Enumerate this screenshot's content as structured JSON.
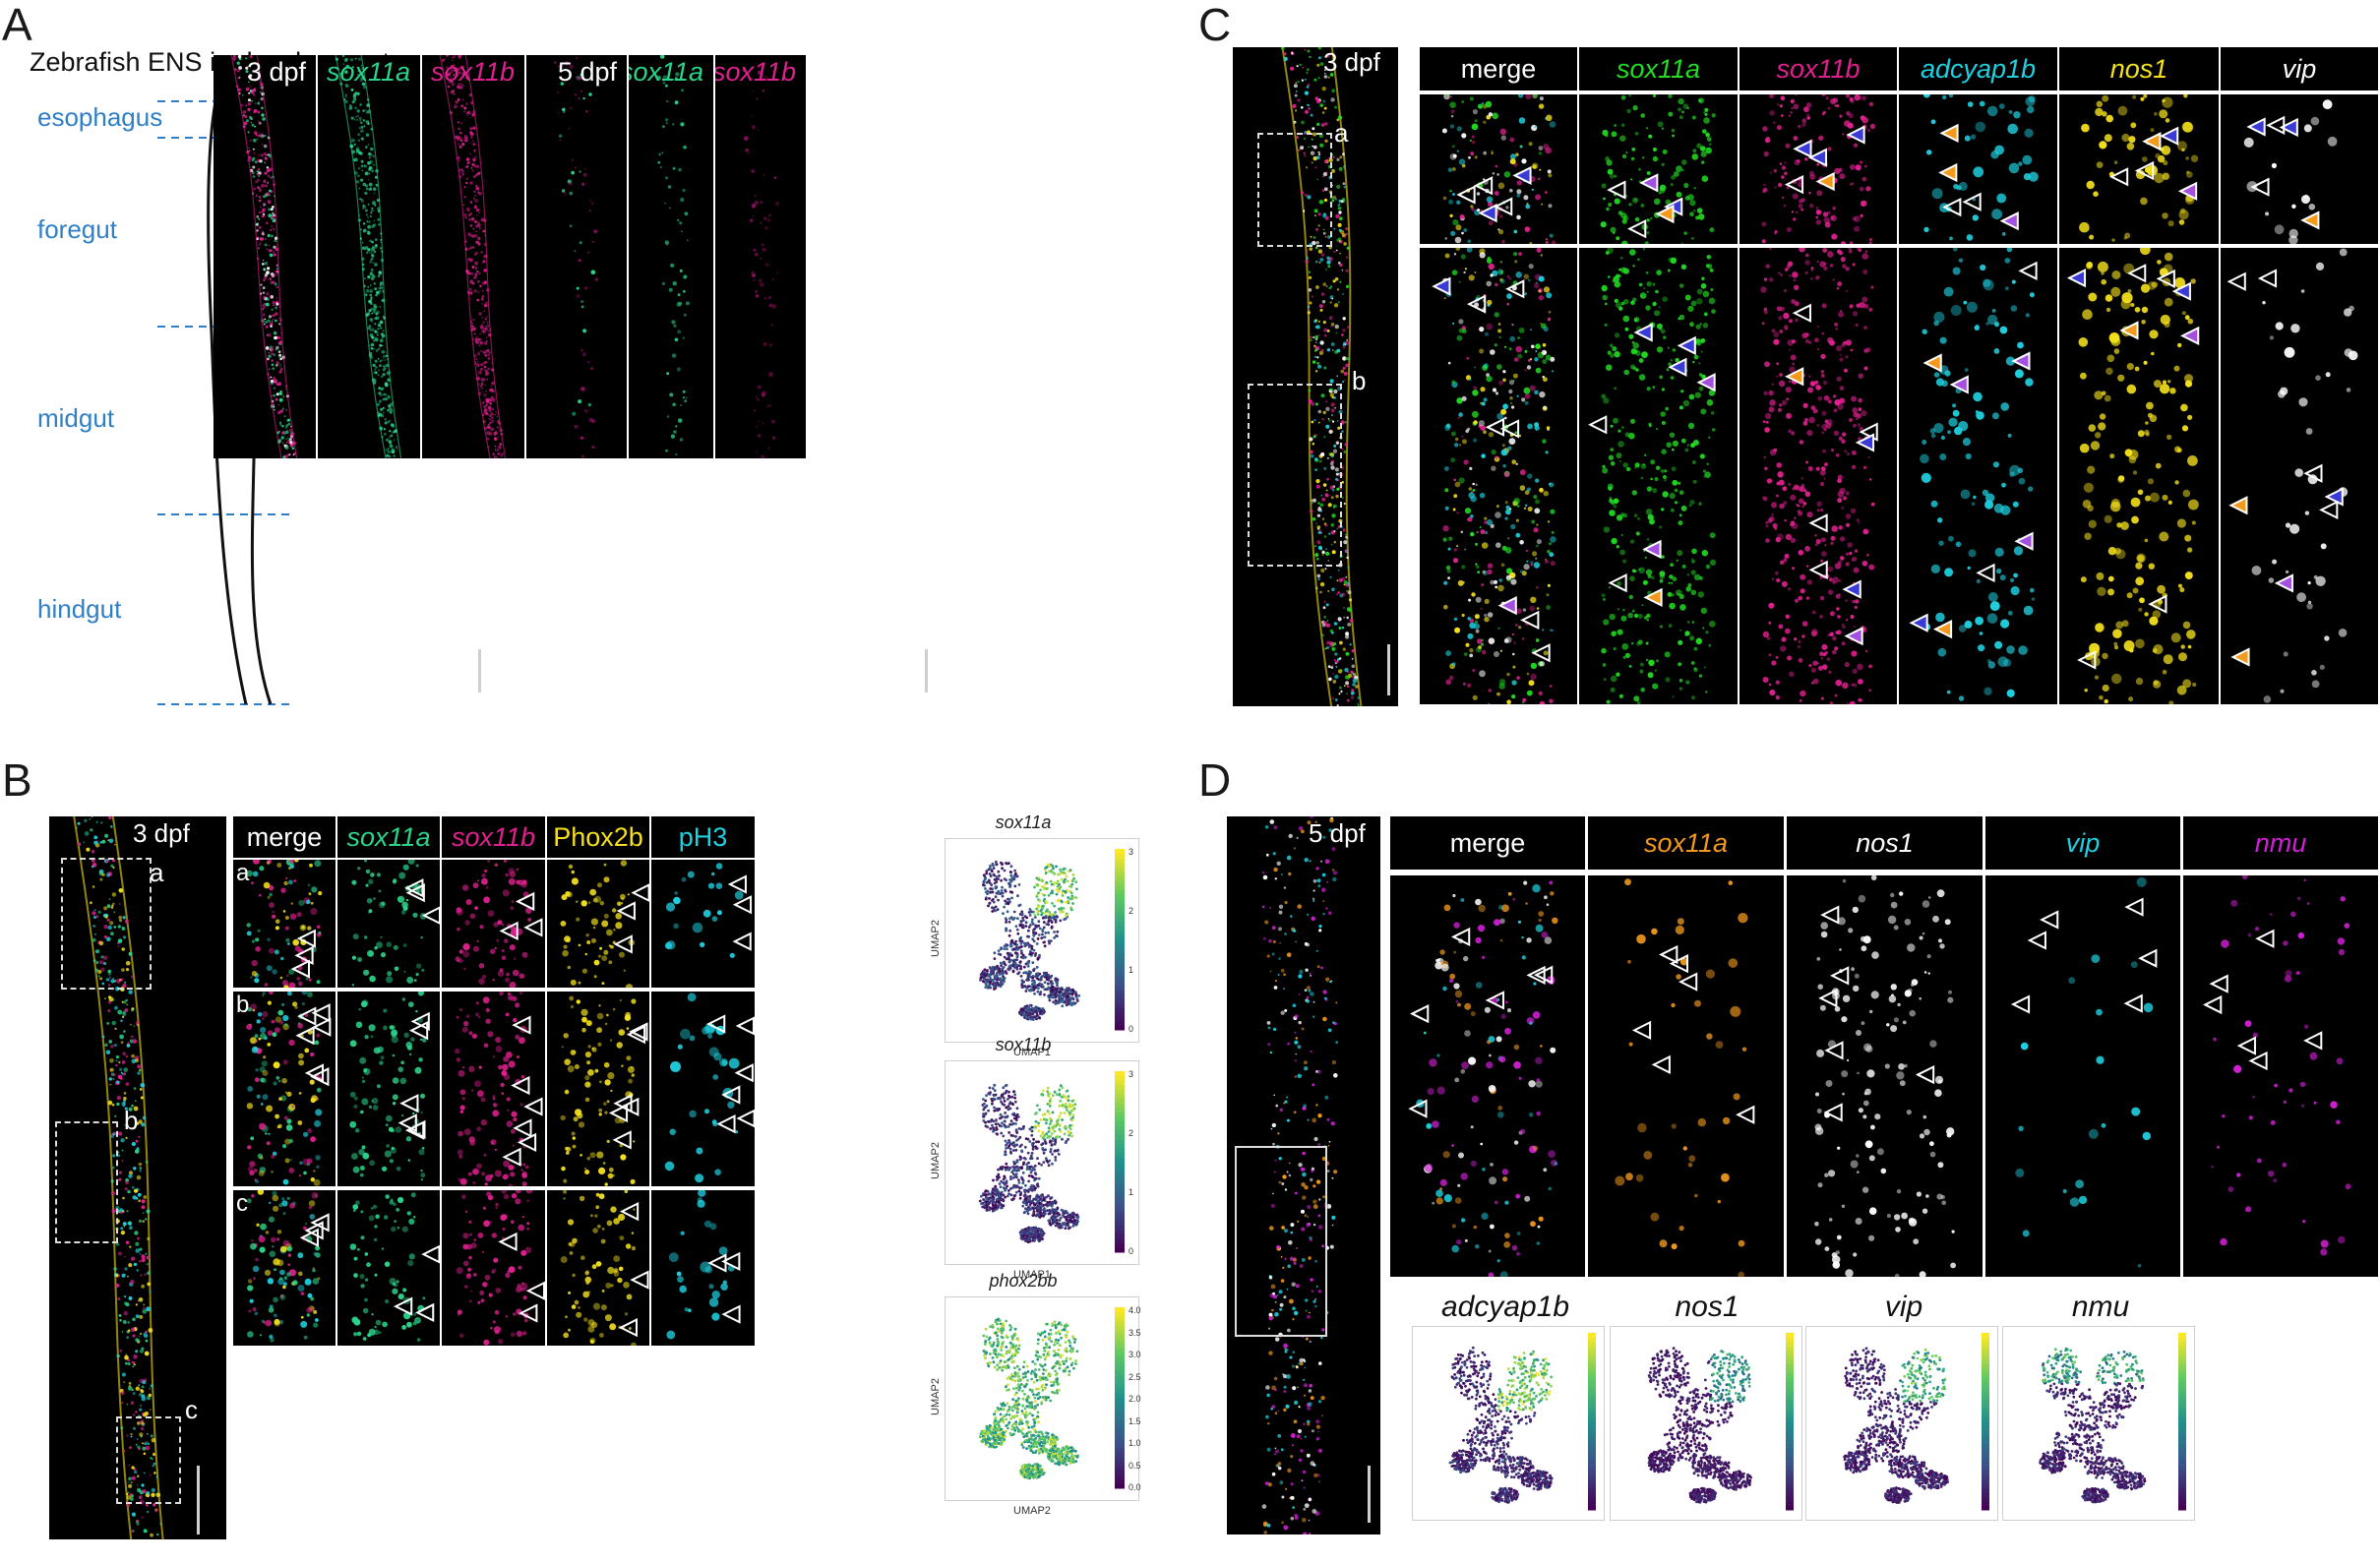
{
  "panels": {
    "A": {
      "letter": "A",
      "title": "Zebrafish ENS in development",
      "regions": [
        "esophagus",
        "foregut",
        "midgut",
        "hindgut"
      ],
      "images": [
        {
          "label": "3 dpf",
          "label_color": "#ffffff",
          "italic": false,
          "stain": "merge"
        },
        {
          "label": "sox11a",
          "label_color": "#2bd48a",
          "italic": true,
          "stain": "green"
        },
        {
          "label": "sox11b",
          "label_color": "#e0208f",
          "italic": true,
          "stain": "magenta"
        },
        {
          "label": "5 dpf",
          "label_color": "#ffffff",
          "italic": false,
          "stain": "merge5"
        },
        {
          "label": "sox11a",
          "label_color": "#2bd48a",
          "italic": true,
          "stain": "green5"
        },
        {
          "label": "sox11b",
          "label_color": "#e0208f",
          "italic": true,
          "stain": "magenta5"
        }
      ]
    },
    "B": {
      "letter": "B",
      "overview_label": "3 dpf",
      "box_labels": [
        "a",
        "b",
        "c"
      ],
      "headers": [
        {
          "text": "merge",
          "color": "#ffffff",
          "italic": false
        },
        {
          "text": "sox11a",
          "color": "#2bd48a",
          "italic": true
        },
        {
          "text": "sox11b",
          "color": "#e0208f",
          "italic": true
        },
        {
          "text": "Phox2b",
          "color": "#f4e01c",
          "italic": false
        },
        {
          "text": "pH3",
          "color": "#1fd0e0",
          "italic": false
        }
      ],
      "row_labels": [
        "a",
        "b",
        "c"
      ],
      "umaps": [
        {
          "title": "sox11a",
          "xlabel": "UMAP1",
          "ylabel": "UMAP2",
          "ticks": [
            "3",
            "2",
            "1",
            "0"
          ]
        },
        {
          "title": "sox11b",
          "xlabel": "UMAP1",
          "ylabel": "UMAP2",
          "ticks": [
            "3",
            "2",
            "1",
            "0"
          ]
        },
        {
          "title": "phox2bb",
          "xlabel": "UMAP2",
          "ylabel": "UMAP2",
          "ticks": [
            "4.0",
            "3.5",
            "3.0",
            "2.5",
            "2.0",
            "1.5",
            "1.0",
            "0.5",
            "0.0"
          ]
        }
      ]
    },
    "C": {
      "letter": "C",
      "overview_label": "3 dpf",
      "box_labels": [
        "a",
        "b"
      ],
      "headers": [
        {
          "text": "merge",
          "color": "#ffffff",
          "italic": false
        },
        {
          "text": "sox11a",
          "color": "#22dd22",
          "italic": true
        },
        {
          "text": "sox11b",
          "color": "#e0208f",
          "italic": true
        },
        {
          "text": "adcyap1b",
          "color": "#1fd0e0",
          "italic": true
        },
        {
          "text": "nos1",
          "color": "#f4e01c",
          "italic": true
        },
        {
          "text": "vip",
          "color": "#ffffff",
          "italic": true
        }
      ],
      "row_labels": [
        "a",
        "b"
      ]
    },
    "D": {
      "letter": "D",
      "overview_label": "5 dpf",
      "headers": [
        {
          "text": "merge",
          "color": "#ffffff",
          "italic": false
        },
        {
          "text": "sox11a",
          "color": "#f39a1c",
          "italic": true
        },
        {
          "text": "nos1",
          "color": "#ffffff",
          "italic": true
        },
        {
          "text": "vip",
          "color": "#1fd0e0",
          "italic": true
        },
        {
          "text": "nmu",
          "color": "#d21fd6",
          "italic": true
        }
      ],
      "umaps": [
        {
          "title": "adcyap1b"
        },
        {
          "title": "nos1"
        },
        {
          "title": "vip"
        },
        {
          "title": "nmu"
        }
      ]
    }
  }
}
